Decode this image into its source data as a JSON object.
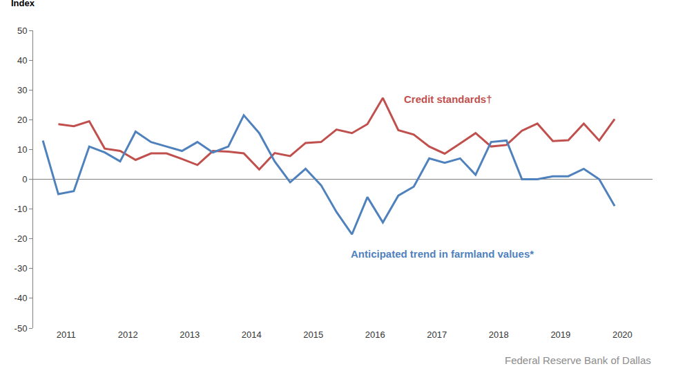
{
  "chart_data": {
    "type": "line",
    "ylabel": "Index",
    "source": "Federal Reserve Bank of Dallas",
    "categories": [
      "2011",
      null,
      null,
      null,
      "2012",
      null,
      null,
      null,
      "2013",
      null,
      null,
      null,
      "2014",
      null,
      null,
      null,
      "2015",
      null,
      null,
      null,
      "2016",
      null,
      null,
      null,
      "2017",
      null,
      null,
      null,
      "2018",
      null,
      null,
      null,
      "2019",
      null,
      null,
      null,
      "2020",
      null
    ],
    "series": [
      {
        "name": "Credit standards†",
        "color": "#c0504d",
        "values": [
          null,
          18.5,
          17.8,
          19.5,
          10.3,
          9.5,
          6.5,
          8.7,
          8.7,
          6.8,
          4.8,
          9.5,
          9.3,
          8.7,
          3.3,
          8.8,
          7.8,
          12.2,
          12.5,
          16.7,
          15.5,
          18.5,
          27.3,
          16.5,
          15.0,
          11.0,
          8.6,
          12.0,
          15.5,
          11.0,
          11.5,
          16.3,
          18.7,
          12.8,
          13.1,
          18.7,
          13.0,
          20.2
        ]
      },
      {
        "name": "Anticipated trend in farmland values*",
        "color": "#4f81bd",
        "values": [
          13.0,
          -5.0,
          -4.0,
          11.0,
          9.0,
          6.0,
          16.0,
          12.5,
          11.0,
          9.5,
          12.5,
          9.0,
          11.0,
          21.5,
          15.5,
          6.0,
          -1.0,
          3.5,
          -2.0,
          -11.0,
          -18.5,
          -6.0,
          -14.5,
          -5.5,
          -2.5,
          7.0,
          5.5,
          7.0,
          1.5,
          12.5,
          13.0,
          0.0,
          0.0,
          1.0,
          1.0,
          3.5,
          0.0,
          -9.0
        ]
      }
    ],
    "ylim": [
      -50,
      50
    ],
    "yticks": [
      -50,
      -40,
      -30,
      -20,
      -10,
      0,
      10,
      20,
      30,
      40,
      50
    ],
    "grid": false
  }
}
